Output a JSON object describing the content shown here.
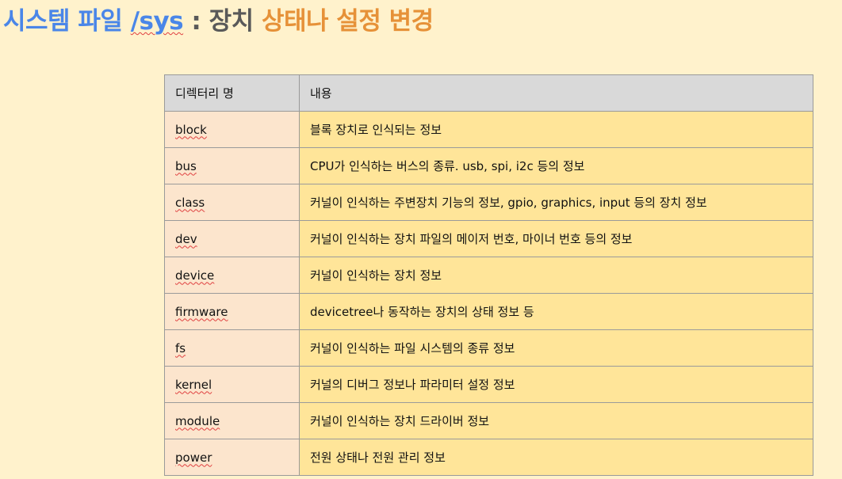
{
  "title": {
    "part1": "시스템 파일 ",
    "part2": "/sys",
    "part3": " : 장치 ",
    "part4": "상태나 설정 변경"
  },
  "table": {
    "headers": [
      "디렉터리 명",
      "내용"
    ],
    "rows": [
      {
        "name": "block",
        "desc": "블록 장치로 인식되는 정보"
      },
      {
        "name": "bus",
        "desc": "CPU가 인식하는 버스의 종류. usb, spi, i2c 등의 정보"
      },
      {
        "name": "class",
        "desc": "커널이 인식하는 주변장치 기능의 정보, gpio, graphics, input 등의 장치 정보"
      },
      {
        "name": "dev",
        "desc": "커널이 인식하는 장치 파일의 메이저 번호, 마이너 번호 등의 정보"
      },
      {
        "name": "device",
        "desc": "커널이 인식하는 장치 정보"
      },
      {
        "name": "firmware",
        "desc": "devicetree나 동작하는 장치의 상태 정보 등"
      },
      {
        "name": "fs",
        "desc": "커널이 인식하는 파일 시스템의 종류 정보"
      },
      {
        "name": "kernel",
        "desc": "커널의 디버그 정보나 파라미터 설정 정보"
      },
      {
        "name": "module",
        "desc": "커널이 인식하는 장치 드라이버 정보"
      },
      {
        "name": "power",
        "desc": "전원 상태나 전원 관리 정보"
      }
    ]
  },
  "colors": {
    "background": "#fff2cc",
    "title_blue": "#4a86e8",
    "title_gray": "#595959",
    "title_orange": "#e69138",
    "header_bg": "#d9d9d9",
    "name_cell_bg": "#fce5cd",
    "desc_cell_bg": "#ffe599"
  }
}
